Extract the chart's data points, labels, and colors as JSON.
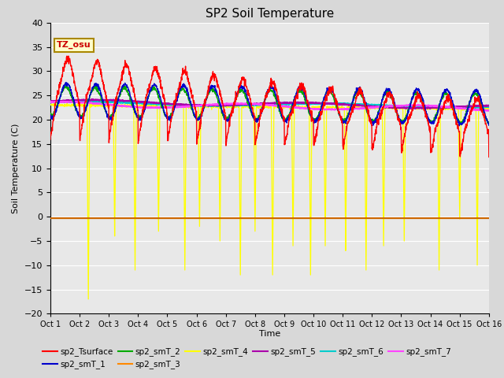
{
  "title": "SP2 Soil Temperature",
  "ylabel": "Soil Temperature (C)",
  "xlabel": "Time",
  "tz_label": "TZ_osu",
  "ylim": [
    -20,
    40
  ],
  "yticks": [
    -20,
    -15,
    -10,
    -5,
    0,
    5,
    10,
    15,
    20,
    25,
    30,
    35,
    40
  ],
  "xlim": [
    0,
    15
  ],
  "xtick_labels": [
    "Oct 1",
    "Oct 2",
    "Oct 3",
    "Oct 4",
    "Oct 5",
    "Oct 6",
    "Oct 7",
    "Oct 8",
    "Oct 9",
    "Oct 10",
    "Oct 11",
    "Oct 12",
    "Oct 13",
    "Oct 14",
    "Oct 15",
    "Oct 16"
  ],
  "bg_color": "#d8d8d8",
  "plot_bg": "#e8e8e8",
  "series_colors": {
    "sp2_Tsurface": "#ff0000",
    "sp2_smT_1": "#0000cc",
    "sp2_smT_2": "#00aa00",
    "sp2_smT_3": "#ff8800",
    "sp2_smT_4": "#ffff00",
    "sp2_smT_5": "#aa00aa",
    "sp2_smT_6": "#00cccc",
    "sp2_smT_7": "#ff44ff"
  },
  "hline_color": "#cc6600",
  "hline_y": -0.3,
  "n_points": 2000
}
